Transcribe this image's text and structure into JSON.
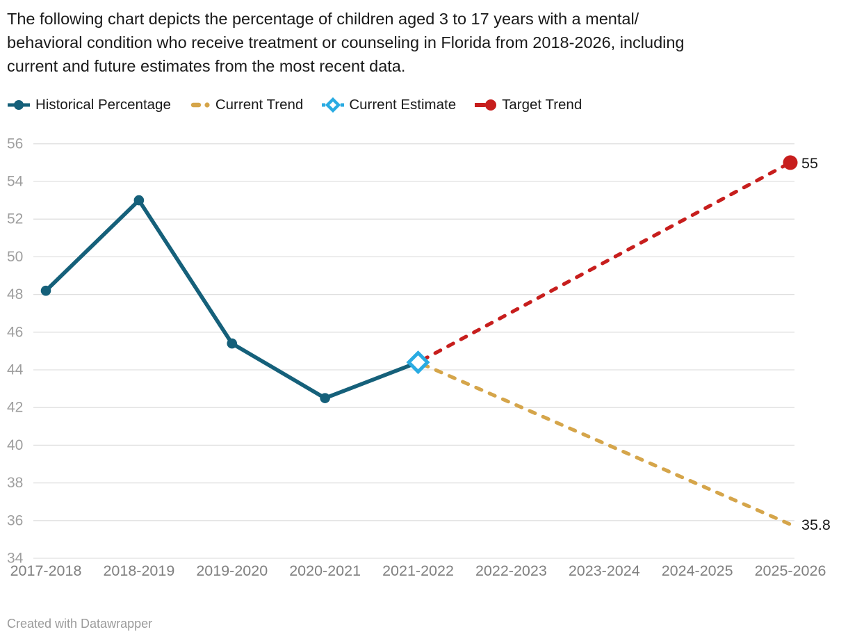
{
  "header": {
    "title": "The following chart depicts the percentage of children aged 3 to 17 years with a mental/behavioral condition who receive treatment or counseling in Florida from 2018-2026, including current and future estimates from the most recent data.",
    "title_lines": [
      "The following chart depicts the percentage of children aged 3 to 17 years with a mental/",
      "behavioral condition who receive treatment or counseling in Florida from 2018-2026, including",
      "current and future estimates from the most recent data."
    ]
  },
  "legend": {
    "items": [
      {
        "label": "Historical Percentage",
        "color": "#15607a",
        "marker": "line-dot"
      },
      {
        "label": "Current Trend",
        "color": "#d5a54a",
        "marker": "dashes"
      },
      {
        "label": "Current Estimate",
        "color": "#29abe2",
        "marker": "hollow-diamond"
      },
      {
        "label": "Target Trend",
        "color": "#c71e1d",
        "marker": "dash-dot"
      }
    ]
  },
  "chart_data": {
    "type": "line",
    "title": "Percentage of children aged 3 to 17 years with a mental/behavioral condition who receive treatment or counseling in Florida, 2018-2026",
    "categories": [
      "2017-2018",
      "2018-2019",
      "2019-2020",
      "2020-2021",
      "2021-2022",
      "2022-2023",
      "2023-2024",
      "2024-2025",
      "2025-2026"
    ],
    "series": [
      {
        "name": "Historical Percentage",
        "color": "#15607a",
        "line_style": "solid",
        "marker": "circle",
        "values": [
          48.2,
          53,
          45.4,
          42.5,
          44.4,
          null,
          null,
          null,
          null
        ]
      },
      {
        "name": "Current Trend",
        "color": "#d5a54a",
        "line_style": "dashed",
        "marker": "none",
        "values": [
          null,
          null,
          null,
          null,
          44.4,
          null,
          null,
          null,
          35.8
        ]
      },
      {
        "name": "Target Trend",
        "color": "#c71e1d",
        "line_style": "dashed",
        "marker": "end-circle",
        "values": [
          null,
          null,
          null,
          null,
          44.4,
          null,
          null,
          null,
          55
        ]
      },
      {
        "name": "Current Estimate",
        "color": "#29abe2",
        "line_style": "none",
        "marker": "diamond",
        "values": [
          null,
          null,
          null,
          null,
          44.4,
          null,
          null,
          null,
          null
        ]
      }
    ],
    "end_labels": [
      {
        "text": "55",
        "value": 55,
        "series": "Target Trend"
      },
      {
        "text": "35.8",
        "value": 35.8,
        "series": "Current Trend"
      }
    ],
    "xlabel": "",
    "ylabel": "",
    "ylim": [
      34,
      56
    ],
    "y_ticks": [
      34,
      36,
      38,
      40,
      42,
      44,
      46,
      48,
      50,
      52,
      54,
      56
    ],
    "grid": "horizontal",
    "legend_position": "top",
    "colors": {
      "grid_line": "#e0e0e0",
      "y_tick_label": "#9e9e9e",
      "x_tick_label": "#808080",
      "end_label": "#1a1a1a"
    }
  },
  "footer": {
    "credit": "Created with Datawrapper"
  }
}
